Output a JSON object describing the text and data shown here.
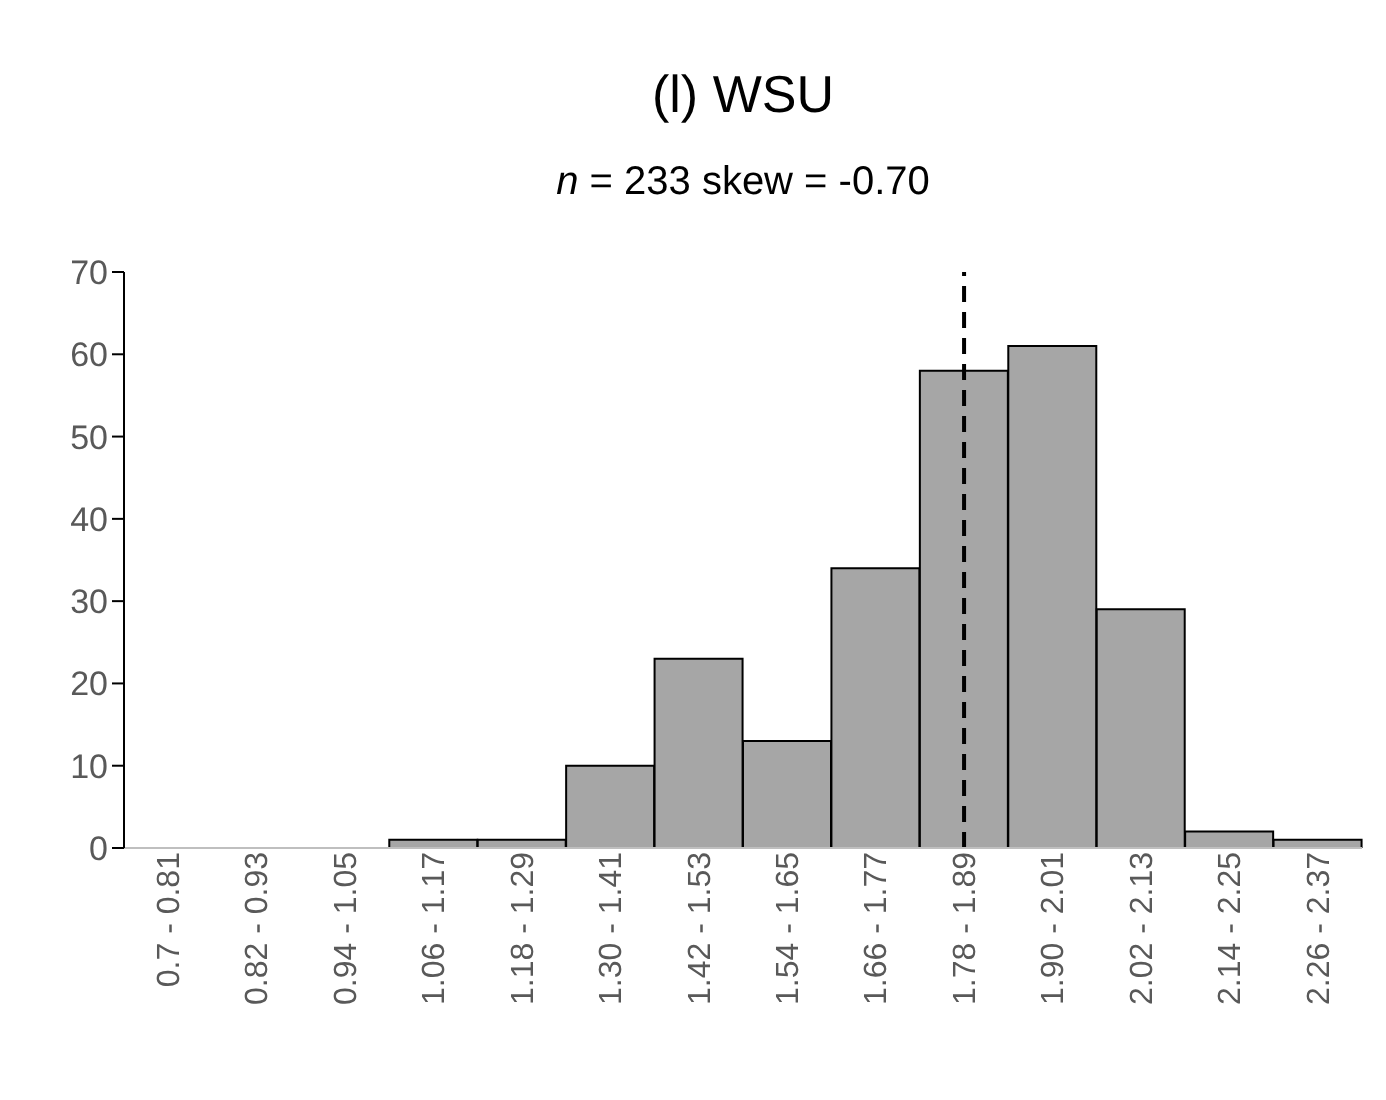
{
  "chart_data": {
    "type": "bar",
    "title": "(l) WSU",
    "subtitle": "n = 233 skew = -0.70",
    "categories": [
      "0.7 - 0.81",
      "0.82 - 0.93",
      "0.94 - 1.05",
      "1.06 - 1.17",
      "1.18 - 1.29",
      "1.30 - 1.41",
      "1.42 - 1.53",
      "1.54 - 1.65",
      "1.66 - 1.77",
      "1.78 - 1.89",
      "1.90 - 2.01",
      "2.02 - 2.13",
      "2.14 - 2.25",
      "2.26 - 2.37"
    ],
    "values": [
      0,
      0,
      0,
      1,
      1,
      10,
      23,
      13,
      34,
      58,
      61,
      29,
      2,
      1
    ],
    "color": "#a6a6a6",
    "ylim": [
      0,
      70
    ],
    "yticks": [
      0,
      10,
      20,
      30,
      40,
      50,
      60,
      70
    ],
    "grid": false,
    "legend": false,
    "ref_lines": [
      {
        "axis": "x",
        "value": "1.78 - 1.89",
        "color": "#000000",
        "line_style": "dashed"
      }
    ]
  }
}
